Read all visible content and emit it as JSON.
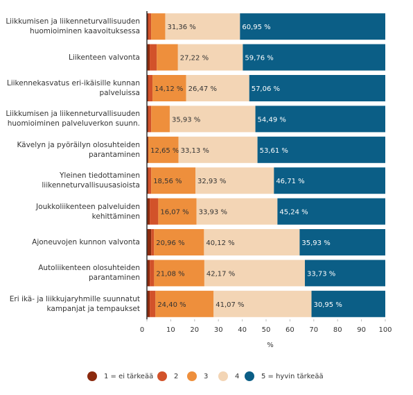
{
  "chart_data": {
    "type": "stacked-bar-horizontal",
    "categories": [
      "Liikkumisen ja liikenneturvallisuuden\nhuomioiminen kaavoituksessa",
      "Liikenteen valvonta",
      "Liikennekasvatus eri-ikäisille kunnan\npalveluissa",
      "Liikkumisen ja liikenneturvallisuuden\nhuomioiminen palveluverkon suunn.",
      "Kävelyn ja pyöräilyn olosuhteiden\nparantaminen",
      "Yleinen tiedottaminen\nliikenneturvallisuusasioista",
      "Joukkoliikenteen palveluiden\nkehittäminen",
      "Ajoneuvojen kunnon valvonta",
      "Autoliikenteen olosuhteiden\nparantaminen",
      "Eri ikä- ja liikkujaryhmille suunnatut\nkampanjat ja tempaukset"
    ],
    "series": [
      {
        "name": "1 = ei tärkeää",
        "color": "#8b2a0e",
        "values": [
          0.59,
          1.18,
          0.59,
          0.6,
          0.61,
          0.6,
          1.19,
          1.8,
          1.2,
          1.19
        ]
      },
      {
        "name": "2",
        "color": "#d2522a",
        "values": [
          1.18,
          2.96,
          1.76,
          1.2,
          0,
          1.2,
          3.57,
          1.19,
          1.82,
          2.39
        ]
      },
      {
        "name": "3",
        "color": "#ee8f3c",
        "values": [
          5.92,
          8.88,
          14.12,
          7.78,
          12.65,
          18.56,
          16.07,
          20.96,
          21.08,
          24.4
        ],
        "value_labels": [
          null,
          null,
          "14,12 %",
          null,
          "12,65 %",
          "18,56 %",
          "16,07 %",
          "20,96 %",
          "21,08 %",
          "24,40 %"
        ]
      },
      {
        "name": "4",
        "color": "#f3d5b5",
        "values": [
          31.36,
          27.22,
          26.47,
          35.93,
          33.13,
          32.93,
          33.93,
          40.12,
          42.17,
          41.07
        ],
        "value_labels": [
          "31,36 %",
          "27,22 %",
          "26,47 %",
          "35,93 %",
          "33,13 %",
          "32,93 %",
          "33,93 %",
          "40,12 %",
          "42,17 %",
          "41,07 %"
        ]
      },
      {
        "name": "5 = hyvin tärkeää",
        "color": "#0b5e86",
        "values": [
          60.95,
          59.76,
          57.06,
          54.49,
          53.61,
          46.71,
          45.24,
          35.93,
          33.73,
          30.95
        ],
        "value_labels": [
          "60,95 %",
          "59,76 %",
          "57,06 %",
          "54,49 %",
          "53,61 %",
          "46,71 %",
          "45,24 %",
          "35,93 %",
          "33,73 %",
          "30,95 %"
        ]
      }
    ],
    "x_label": "%",
    "xlim": [
      0,
      100
    ],
    "xticks": [
      0,
      10,
      20,
      30,
      40,
      50,
      60,
      70,
      80,
      90,
      100
    ],
    "legend": "bottom"
  }
}
